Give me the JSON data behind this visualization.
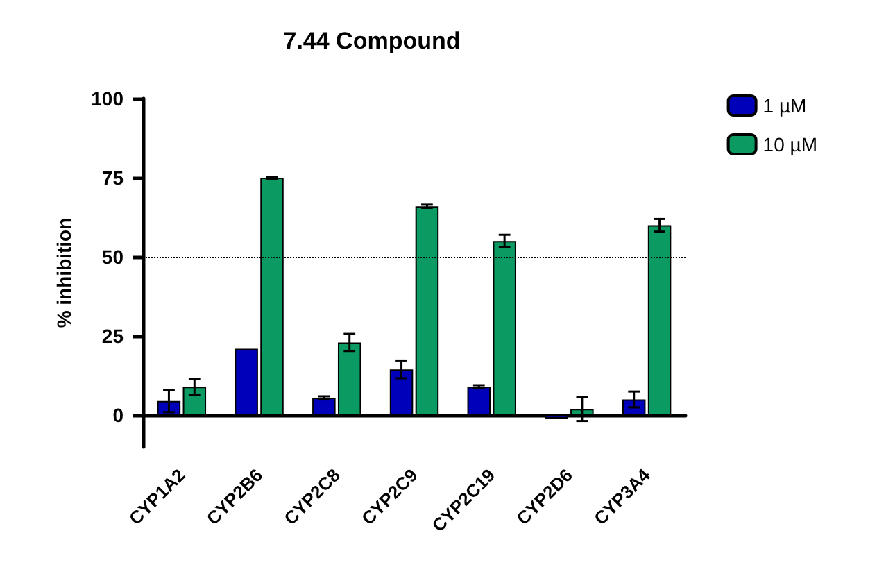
{
  "chart_data": {
    "type": "bar",
    "title": "7.44 Compound",
    "ylabel": "% inhibition",
    "categories": [
      "CYP1A2",
      "CYP2B6",
      "CYP2C8",
      "CYP2C9",
      "CYP2C19",
      "CYP2D6",
      "CYP3A4"
    ],
    "series": [
      {
        "name": "1 µM",
        "color": "#0000bb",
        "values": [
          4.5,
          21,
          5.5,
          14.5,
          9,
          -1,
          5
        ],
        "errors": [
          3.5,
          null,
          0.5,
          2.8,
          0.5,
          null,
          2.5
        ]
      },
      {
        "name": "10 µM",
        "color": "#0c9a63",
        "values": [
          9,
          75,
          23,
          66,
          55,
          2,
          60
        ],
        "errors": [
          2.5,
          0.3,
          2.7,
          0.5,
          2,
          3.8,
          2
        ]
      }
    ],
    "ylim": [
      -10,
      100
    ],
    "yticks": [
      0,
      25,
      50,
      75,
      100
    ],
    "grid": false,
    "legend": "top right",
    "ref_lines": [
      {
        "axis": "y",
        "value": 50,
        "line_style": "dotted",
        "color": "#000000"
      }
    ]
  }
}
